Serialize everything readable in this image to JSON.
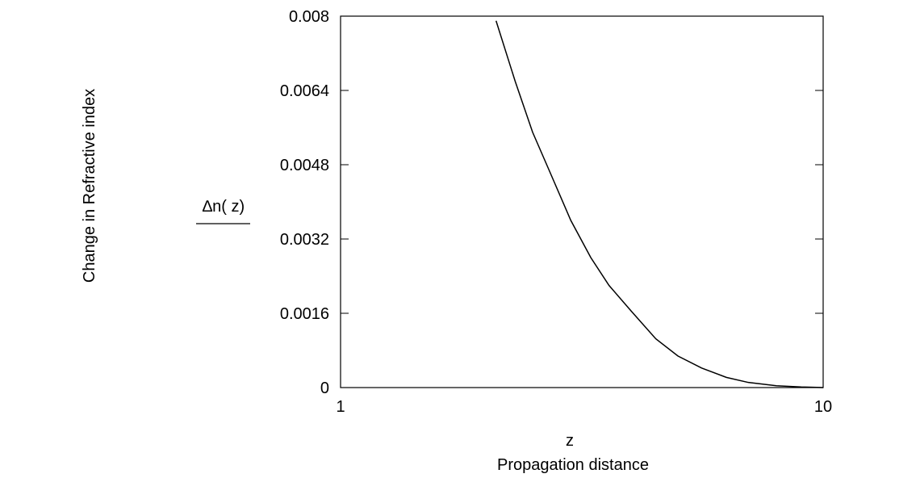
{
  "chart_data": {
    "type": "line",
    "x_scale": "log",
    "xlim": [
      1,
      10
    ],
    "ylim": [
      0,
      0.008
    ],
    "x_ticks": [
      "1",
      "10"
    ],
    "y_ticks": [
      "0",
      "0.0016",
      "0.0032",
      "0.0048",
      "0.0064",
      "0.008"
    ],
    "xlabel_symbol": "z",
    "xlabel": "Propagation distance",
    "ylabel_symbol": "∆n( z)",
    "ylabel": "Change in Refractive  index",
    "grid": false,
    "series": [
      {
        "color": "#000000",
        "x": [
          2.1,
          2.3,
          2.5,
          2.7,
          3.0,
          3.3,
          3.6,
          4.0,
          4.5,
          5.0,
          5.6,
          6.3,
          7.0,
          8.0,
          9.0,
          10.0
        ],
        "y": [
          0.0079,
          0.0066,
          0.0055,
          0.0047,
          0.0036,
          0.0028,
          0.0022,
          0.00165,
          0.00105,
          0.00068,
          0.00042,
          0.00022,
          0.00011,
          4e-05,
          1.2e-05,
          0.0
        ]
      }
    ]
  }
}
